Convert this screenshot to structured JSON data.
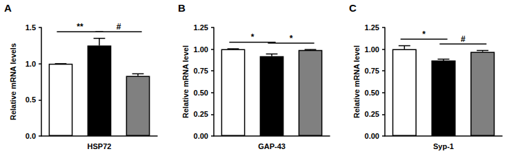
{
  "chart_data": [
    {
      "type": "bar",
      "panel_label": "A",
      "y_label": "Relative mRNA levels",
      "x_label": "HSP72",
      "categories": [
        null,
        null,
        null
      ],
      "values": [
        1.0,
        1.25,
        0.83
      ],
      "errors": [
        0,
        0.1,
        0.03
      ],
      "colors": [
        "#ffffff",
        "#000000",
        "#808080"
      ],
      "ylim": [
        0,
        1.5
      ],
      "yticks": [
        {
          "value": 0,
          "label": "0.0"
        },
        0.5,
        {
          "value": 1,
          "label": "1.0"
        },
        1.5
      ],
      "grid": false,
      "tick_labels": "y",
      "annotations": [
        {
          "from": 0,
          "to": 1,
          "label": "**"
        },
        {
          "from": 1,
          "to": 2,
          "label": "#"
        }
      ]
    },
    {
      "type": "bar",
      "panel_label": "B",
      "y_label": "Relative mRNA level",
      "x_label": "GAP-43",
      "categories": [
        null,
        null,
        null
      ],
      "values": [
        1.0,
        0.92,
        0.99
      ],
      "errors": [
        0.005,
        0.025,
        0.006
      ],
      "colors": [
        "#ffffff",
        "#000000",
        "#808080"
      ],
      "ylim": [
        0,
        1.25
      ],
      "yticks": [
        {
          "value": 0,
          "label": "0.00"
        },
        0.25,
        {
          "value": 0.5,
          "label": "0.50"
        },
        0.75,
        {
          "value": 1,
          "label": "1.00"
        },
        1.25
      ],
      "grid": false,
      "tick_labels": "y",
      "annotations": [
        {
          "from": 0,
          "to": 1,
          "label": "*"
        },
        {
          "from": 1,
          "to": 2,
          "label": "*"
        }
      ]
    },
    {
      "type": "bar",
      "panel_label": "C",
      "y_label": "Relative mRNA level",
      "x_label": "Syp-1",
      "categories": [
        null,
        null,
        null
      ],
      "values": [
        1.0,
        0.87,
        0.97
      ],
      "errors": [
        0.04,
        0.015,
        0.015
      ],
      "colors": [
        "#ffffff",
        "#000000",
        "#808080"
      ],
      "ylim": [
        0,
        1.25
      ],
      "yticks": [
        {
          "value": 0,
          "label": "0.00"
        },
        0.25,
        {
          "value": 0.5,
          "label": "0.50"
        },
        0.75,
        {
          "value": 1,
          "label": "1.00"
        },
        1.25
      ],
      "grid": false,
      "tick_labels": "y",
      "annotations": [
        {
          "from": 0,
          "to": 1,
          "label": "*"
        },
        {
          "from": 1,
          "to": 2,
          "label": "#"
        }
      ]
    }
  ]
}
